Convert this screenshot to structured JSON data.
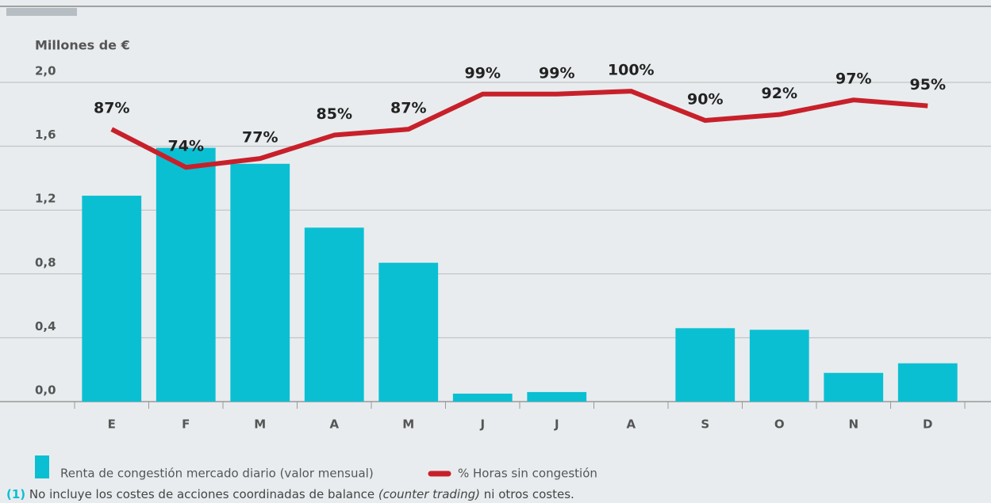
{
  "chart_data": {
    "type": "bar",
    "y_label": "Millones de €",
    "categories": [
      "E",
      "F",
      "M",
      "A",
      "M",
      "J",
      "J",
      "A",
      "S",
      "O",
      "N",
      "D"
    ],
    "series": [
      {
        "name": "Renta de congestión mercado diario (valor mensual)",
        "color": "#0bbfd3",
        "values": [
          1.29,
          1.59,
          1.49,
          1.09,
          0.87,
          0.05,
          0.06,
          0,
          0.46,
          0.45,
          0.18,
          0.24
        ]
      },
      {
        "name": "% Horas sin congestión",
        "color": "#c8202a",
        "type": "line",
        "axis": "y2",
        "values": [
          87,
          74,
          77,
          85,
          87,
          99,
          99,
          100,
          90,
          92,
          97,
          95
        ],
        "value_labels": [
          "87%",
          "74%",
          "77%",
          "85%",
          "87%",
          "99%",
          "99%",
          "100%",
          "90%",
          "92%",
          "97%",
          "95%"
        ]
      }
    ],
    "ylim": [
      0,
      2
    ],
    "yticks": [
      {
        "value": 0,
        "label": "0,0"
      },
      {
        "value": 0.4,
        "label": "0,4"
      },
      {
        "value": 0.8,
        "label": "0,8"
      },
      {
        "value": 1.2,
        "label": "1,2"
      },
      {
        "value": 1.6,
        "label": "1,6"
      },
      {
        "value": 2,
        "label": "2,0"
      }
    ],
    "y2lim": [
      -6,
      103
    ],
    "grid": true
  },
  "footnote": {
    "marker": "(1)",
    "text": " No incluye los costes de acciones coordinadas de balance ",
    "italic": "(counter trading)",
    "text_end": " ni otros costes."
  }
}
